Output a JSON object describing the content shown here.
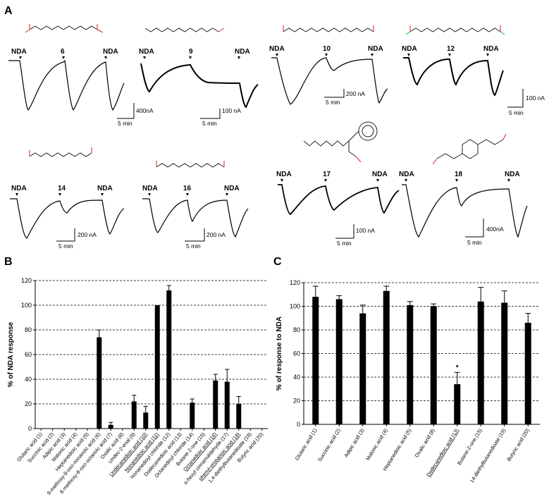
{
  "panel_labels": {
    "a": "A",
    "b": "B",
    "c": "C"
  },
  "traces": [
    {
      "id": "6",
      "left": "NDA",
      "mid": "6",
      "right": "NDA",
      "scale_y": "400nA",
      "scale_x": "5 min"
    },
    {
      "id": "9",
      "left": "NDA",
      "mid": "9",
      "right": "NDA",
      "scale_y": "100 nA",
      "scale_x": "5 min"
    },
    {
      "id": "10",
      "left": "NDA",
      "mid": "10",
      "right": "NDA",
      "scale_y": "200 nA",
      "scale_x": "5 min"
    },
    {
      "id": "12",
      "left": "NDA",
      "mid": "12",
      "right": "NDA",
      "scale_y": "100 nA",
      "scale_x": "5 min"
    },
    {
      "id": "14",
      "left": "NDA",
      "mid": "14",
      "right": "NDA",
      "scale_y": "200 nA",
      "scale_x": "5 min"
    },
    {
      "id": "16",
      "left": "NDA",
      "mid": "16",
      "right": "NDA",
      "scale_y": "200 nA",
      "scale_x": "5 min"
    },
    {
      "id": "17",
      "left": "NDA",
      "mid": "17",
      "right": "NDA",
      "scale_y": "100 nA",
      "scale_x": "5 min"
    },
    {
      "id": "18",
      "left": "NDA",
      "mid": "18",
      "right": "NDA",
      "scale_y": "400nA",
      "scale_x": "5 min"
    }
  ],
  "chart_data": [
    {
      "type": "bar",
      "panel": "B",
      "ylabel": "% of NDA response",
      "ylim": [
        0,
        120
      ],
      "yticks": [
        0,
        20,
        40,
        60,
        80,
        100,
        120
      ],
      "grid": "horizontal dashed",
      "categories": [
        "Glutaric acid (1)",
        "Succinic acid (2)",
        "Adipic acid (3)",
        "Malonic acid (4)",
        "Heptanedioic acid (5)",
        "9-methoxy-9-oxo-nonanoic acid (6)",
        "8-methoxy-8-oxo-octanoic acid (7)",
        "Oxalic acid (8)",
        "Undec-2-enal (9)",
        "Undecanedioic acid (10)",
        "Nonanedioic acid (11)",
        "Nonanedioyl chloride (12)",
        "Dodecanedioic acid (13)",
        "Octanedioyl chloride (14)",
        "Butane-2-one (15)",
        "Octanedioic acid (16)",
        "α-hexyl cinnamaldehyde (17)",
        "phenyl-propanoic acid (18)",
        "1,4-diethylbutanedioate (19)",
        "Butyric acid (20)"
      ],
      "underlined": [
        9,
        10,
        15,
        17
      ],
      "values": [
        0,
        0,
        0,
        0,
        0,
        74,
        3,
        0,
        22,
        13,
        100,
        112,
        0,
        21,
        0,
        39,
        38,
        20,
        0,
        0
      ],
      "errors": [
        0,
        0,
        0,
        0,
        0,
        6,
        2,
        0,
        5,
        5,
        0,
        4,
        0,
        3,
        0,
        5,
        10,
        6,
        0,
        0
      ]
    },
    {
      "type": "bar",
      "panel": "C",
      "ylabel": "% of response to NDA",
      "ylim": [
        0,
        120
      ],
      "yticks": [
        0,
        20,
        40,
        60,
        80,
        100,
        120
      ],
      "grid": "horizontal dashed",
      "categories": [
        "Glutaric acid (1)",
        "Succinic acid (2)",
        "Adipic acid (3)",
        "Malonic acid (4)",
        "Heptanedioic acid (5)",
        "Oxalic acid (8)",
        "Dodecanedioic acid (13)",
        "Butane-2-one (15)",
        "14-diethylbutanedioate (19)",
        "Butyric acid (20)"
      ],
      "underlined": [
        6
      ],
      "values": [
        108,
        106,
        94,
        113,
        101,
        100,
        34,
        104,
        103,
        86
      ],
      "errors": [
        9,
        3,
        7,
        4,
        3,
        2,
        10,
        12,
        10,
        8
      ],
      "significance": {
        "index": 6,
        "mark": "*"
      }
    }
  ]
}
